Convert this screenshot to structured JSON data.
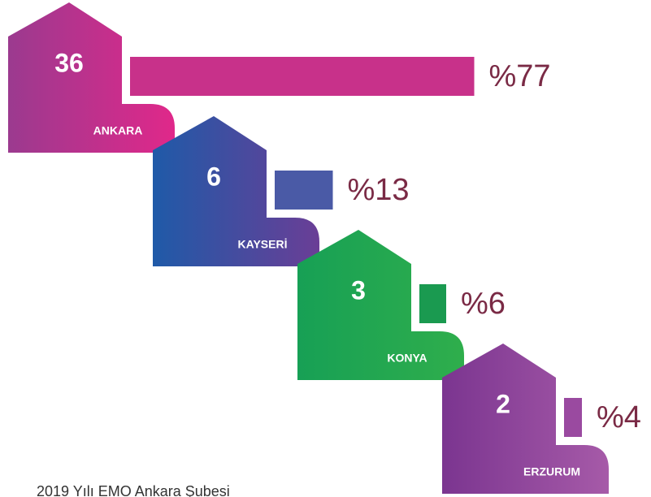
{
  "chart_data": {
    "type": "bar",
    "categories": [
      "ANKARA",
      "KAYSERİ",
      "KONYA",
      "ERZURUM"
    ],
    "counts": [
      36,
      6,
      3,
      2
    ],
    "values": [
      77,
      13,
      6,
      4
    ],
    "value_labels": [
      "%77",
      "%13",
      "%6",
      "%4"
    ],
    "colors": [
      "#c8318a",
      "#4a5aa6",
      "#1a9a50",
      "#9a4aa0"
    ],
    "house_gradients": [
      [
        "#9b3a8f",
        "#e0288a"
      ],
      [
        "#1f5aa8",
        "#6a3e96"
      ],
      [
        "#17a055",
        "#2fae4c"
      ],
      [
        "#7b3590",
        "#a65aa8"
      ]
    ],
    "caption": "2019 Yılı EMO Ankara Şubesi"
  }
}
